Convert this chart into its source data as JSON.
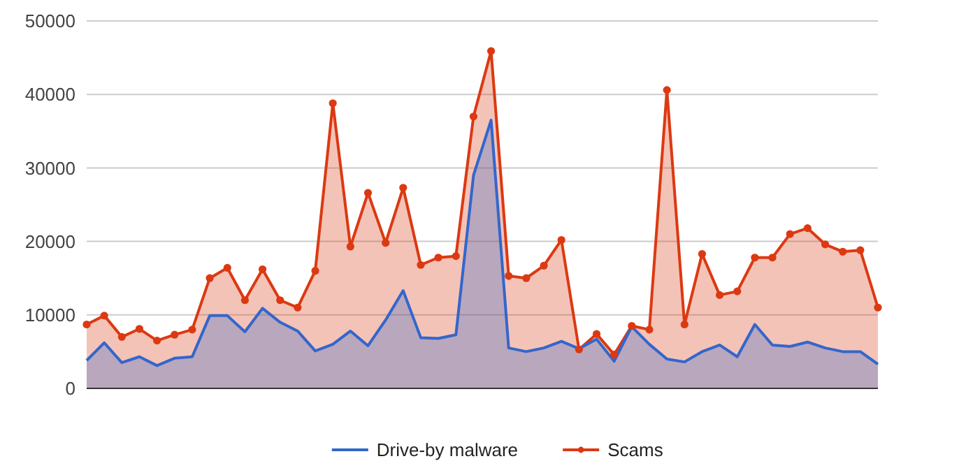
{
  "chart_data": {
    "type": "area",
    "categories": [
      null,
      null,
      null,
      null,
      null,
      null,
      null,
      null,
      null,
      null,
      null,
      null,
      null,
      null,
      null,
      null,
      null,
      null,
      null,
      null,
      null,
      null,
      null,
      null,
      null,
      null,
      null,
      null,
      null,
      null,
      null,
      null,
      null,
      null,
      null,
      null,
      null,
      null,
      null,
      null,
      null,
      null,
      null,
      null,
      null,
      null
    ],
    "series": [
      {
        "name": "Drive-by malware",
        "color": "#3366cc",
        "marker": "none",
        "values": [
          3800,
          6200,
          3500,
          4300,
          3100,
          4100,
          4300,
          9900,
          9900,
          7700,
          10900,
          9000,
          7800,
          5100,
          6000,
          7800,
          5800,
          9300,
          13300,
          6900,
          6800,
          7300,
          29000,
          36500,
          5500,
          5000,
          5500,
          6400,
          5400,
          6700,
          3700,
          8400,
          6000,
          4000,
          3600,
          5000,
          5900,
          4300,
          8700,
          5900,
          5700,
          6300,
          5500,
          5000,
          5000,
          3300
        ]
      },
      {
        "name": "Scams",
        "color": "#dc3912",
        "marker": "circle",
        "values": [
          8700,
          9900,
          7000,
          8100,
          6500,
          7300,
          8000,
          15000,
          16400,
          12000,
          16200,
          12000,
          11000,
          16000,
          38800,
          19300,
          26600,
          19800,
          27300,
          16800,
          17800,
          18000,
          37000,
          45900,
          15300,
          15000,
          16700,
          20200,
          5300,
          7400,
          4600,
          8500,
          8000,
          40600,
          8700,
          18300,
          12700,
          13200,
          17800,
          17800,
          21000,
          21800,
          19600,
          18600,
          18800,
          11000
        ]
      }
    ],
    "ylim": [
      0,
      50000
    ],
    "yticks": [
      0,
      10000,
      20000,
      30000,
      40000,
      50000
    ],
    "grid": "y",
    "legend": "bottom"
  }
}
